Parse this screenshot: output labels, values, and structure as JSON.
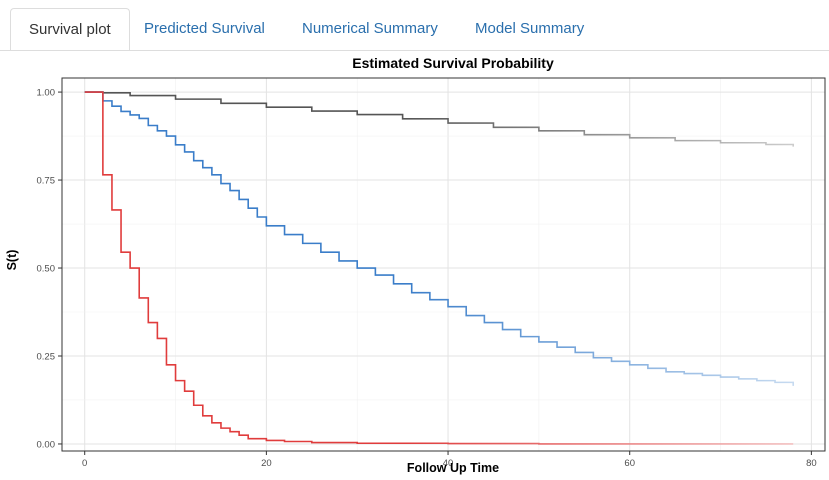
{
  "tabs": [
    {
      "label": "Survival plot",
      "active": true
    },
    {
      "label": "Predicted Survival",
      "active": false
    },
    {
      "label": "Numerical Summary",
      "active": false
    },
    {
      "label": "Model Summary",
      "active": false
    }
  ],
  "chart_data": {
    "type": "line",
    "step": true,
    "title": "Estimated Survival Probability",
    "xlabel": "Follow Up Time",
    "ylabel": "S(t)",
    "xlim": [
      -2.5,
      81.5
    ],
    "ylim": [
      -0.02,
      1.04
    ],
    "x_ticks": [
      0,
      20,
      40,
      60,
      80
    ],
    "x_tick_labels": [
      "0",
      "20",
      "40",
      "60",
      "80"
    ],
    "y_ticks": [
      0,
      0.25,
      0.5,
      0.75,
      1.0
    ],
    "y_tick_labels": [
      "0.00",
      "0.25",
      "0.50",
      "0.75",
      "1.00"
    ],
    "grid": true,
    "legend": "none",
    "series": [
      {
        "color": "#555555",
        "fade_to": "#cccccc",
        "x": [
          0,
          1,
          2,
          5,
          10,
          15,
          20,
          25,
          30,
          35,
          40,
          45,
          50,
          55,
          60,
          65,
          70,
          75,
          78
        ],
        "y": [
          1.0,
          1.0,
          0.998,
          0.99,
          0.98,
          0.968,
          0.957,
          0.946,
          0.936,
          0.924,
          0.912,
          0.9,
          0.89,
          0.879,
          0.87,
          0.862,
          0.856,
          0.851,
          0.845
        ]
      },
      {
        "color": "#3a7dc9",
        "fade_to": "#c6daf0",
        "x": [
          0,
          1,
          2,
          3,
          4,
          5,
          6,
          7,
          8,
          9,
          10,
          11,
          12,
          13,
          14,
          15,
          16,
          17,
          18,
          19,
          20,
          22,
          24,
          26,
          28,
          30,
          32,
          34,
          36,
          38,
          40,
          42,
          44,
          46,
          48,
          50,
          52,
          54,
          56,
          58,
          60,
          62,
          64,
          66,
          68,
          70,
          72,
          74,
          76,
          78
        ],
        "y": [
          1.0,
          1.0,
          0.975,
          0.96,
          0.945,
          0.935,
          0.925,
          0.905,
          0.89,
          0.875,
          0.85,
          0.83,
          0.805,
          0.785,
          0.765,
          0.74,
          0.72,
          0.695,
          0.67,
          0.645,
          0.62,
          0.595,
          0.57,
          0.545,
          0.52,
          0.5,
          0.48,
          0.455,
          0.43,
          0.41,
          0.39,
          0.365,
          0.345,
          0.325,
          0.305,
          0.29,
          0.275,
          0.26,
          0.245,
          0.235,
          0.225,
          0.215,
          0.205,
          0.2,
          0.195,
          0.19,
          0.185,
          0.18,
          0.175,
          0.165
        ]
      },
      {
        "color": "#e03c3c",
        "fade_to": "#f2c0c0",
        "x": [
          0,
          1,
          2,
          3,
          4,
          5,
          6,
          7,
          8,
          9,
          10,
          11,
          12,
          13,
          14,
          15,
          16,
          17,
          18,
          20,
          22,
          25,
          30,
          40,
          50,
          60,
          70,
          78
        ],
        "y": [
          1.0,
          1.0,
          0.765,
          0.665,
          0.545,
          0.5,
          0.415,
          0.345,
          0.3,
          0.225,
          0.18,
          0.15,
          0.11,
          0.08,
          0.06,
          0.045,
          0.035,
          0.025,
          0.015,
          0.01,
          0.007,
          0.004,
          0.002,
          0.001,
          0.0,
          0.0,
          0.0,
          0.0
        ]
      }
    ]
  }
}
